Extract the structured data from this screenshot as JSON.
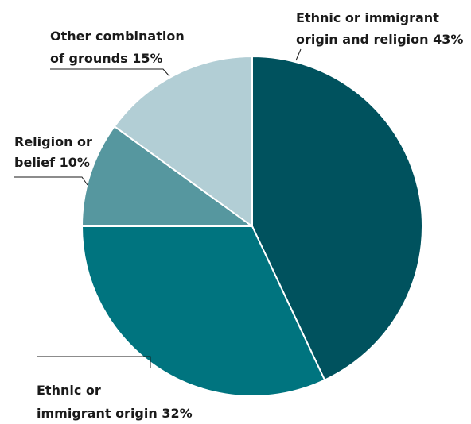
{
  "chart_data": {
    "type": "pie",
    "slices": [
      {
        "label_lines": [
          "Ethnic or immigrant",
          "origin and religion 43%"
        ],
        "value": 43,
        "color": "#00525e"
      },
      {
        "label_lines": [
          "Ethnic or",
          "immigrant origin 32%"
        ],
        "value": 32,
        "color": "#00747f"
      },
      {
        "label_lines": [
          "Religion or",
          "belief 10%"
        ],
        "value": 10,
        "color": "#56979f"
      },
      {
        "label_lines": [
          "Other combination",
          "of grounds 15%"
        ],
        "value": 15,
        "color": "#b2ced5"
      }
    ],
    "start_angle_deg": 0,
    "direction": "clockwise",
    "slice_border_color": "#ffffff"
  }
}
